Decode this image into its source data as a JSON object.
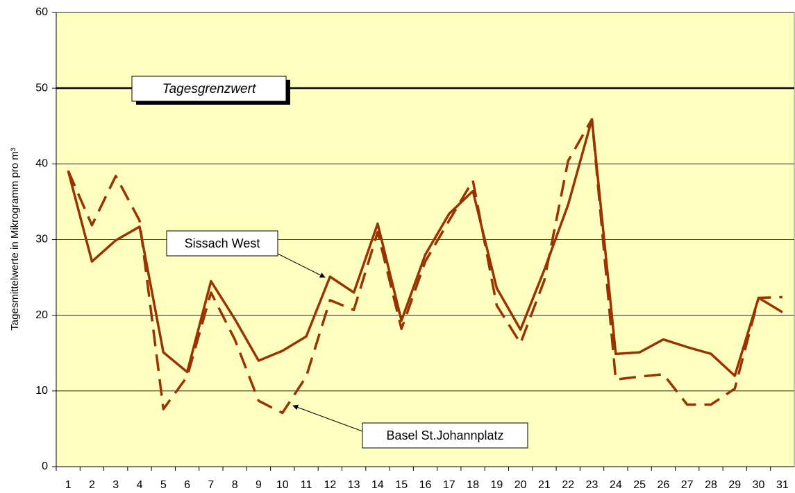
{
  "chart_data": {
    "type": "line",
    "y_label": "Tagesmittelwerte in Mikrogramm pro m³",
    "categories": [
      "1",
      "2",
      "3",
      "4",
      "5",
      "6",
      "7",
      "8",
      "9",
      "10",
      "11",
      "12",
      "13",
      "14",
      "15",
      "16",
      "17",
      "18",
      "19",
      "20",
      "21",
      "22",
      "23",
      "24",
      "25",
      "26",
      "27",
      "28",
      "29",
      "30",
      "31"
    ],
    "series": [
      {
        "name": "Sissach West",
        "color": "#993300",
        "dash": false,
        "values": [
          39.1,
          27.1,
          29.9,
          31.7,
          15.1,
          12.5,
          24.5,
          19.5,
          14.0,
          15.3,
          17.2,
          25.1,
          23.0,
          32.1,
          19.3,
          28.0,
          33.4,
          36.4,
          23.6,
          18.1,
          26.0,
          34.6,
          45.9,
          14.9,
          15.1,
          16.8,
          15.8,
          14.9,
          12.0,
          22.3,
          20.4
        ]
      },
      {
        "name": "Basel St.Johannplatz",
        "color": "#993300",
        "dash": true,
        "values": [
          39.1,
          31.9,
          38.4,
          32.5,
          7.6,
          11.9,
          23.0,
          16.8,
          8.7,
          7.1,
          11.9,
          22.0,
          20.7,
          31.0,
          18.2,
          27.1,
          32.5,
          37.8,
          21.3,
          16.3,
          24.6,
          40.4,
          45.9,
          11.5,
          11.9,
          12.2,
          8.2,
          8.2,
          10.3,
          22.3,
          22.4
        ]
      }
    ],
    "reference_line": {
      "value": 50,
      "label": "Tagesgrenzwert"
    },
    "ylim": [
      0,
      60
    ],
    "yticks": [
      0,
      10,
      20,
      30,
      40,
      50,
      60
    ],
    "grid": true,
    "background": "#ffffc0"
  }
}
